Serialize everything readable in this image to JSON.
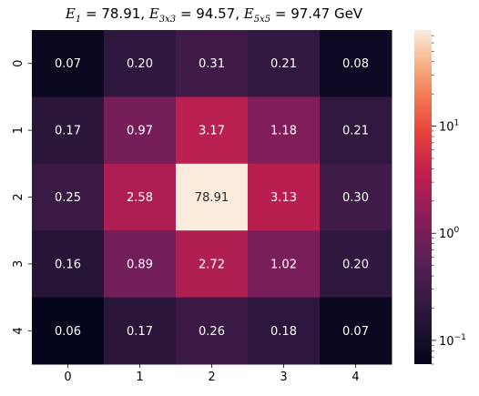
{
  "title": {
    "e1_label": "E",
    "e1_sub": "1",
    "e1_value": "78.91",
    "e3_label": "E",
    "e3_sub": "3x3",
    "e3_value": "94.57",
    "e5_label": "E",
    "e5_sub": "5x5",
    "e5_value": "97.47",
    "unit": "GeV"
  },
  "chart_data": {
    "type": "heatmap",
    "title": "E1 = 78.91, E3x3 = 94.57, E5x5 = 97.47 GeV",
    "x_categories": [
      "0",
      "1",
      "2",
      "3",
      "4"
    ],
    "y_categories": [
      "0",
      "1",
      "2",
      "3",
      "4"
    ],
    "values": [
      [
        0.07,
        0.2,
        0.31,
        0.21,
        0.08
      ],
      [
        0.17,
        0.97,
        3.17,
        1.18,
        0.21
      ],
      [
        0.25,
        2.58,
        78.91,
        3.13,
        0.3
      ],
      [
        0.16,
        0.89,
        2.72,
        1.02,
        0.2
      ],
      [
        0.06,
        0.17,
        0.26,
        0.18,
        0.07
      ]
    ],
    "value_labels": [
      [
        "0.07",
        "0.20",
        "0.31",
        "0.21",
        "0.08"
      ],
      [
        "0.17",
        "0.97",
        "3.17",
        "1.18",
        "0.21"
      ],
      [
        "0.25",
        "2.58",
        "78.91",
        "3.13",
        "0.30"
      ],
      [
        "0.16",
        "0.89",
        "2.72",
        "1.02",
        "0.20"
      ],
      [
        "0.06",
        "0.17",
        "0.26",
        "0.18",
        "0.07"
      ]
    ],
    "colorbar": {
      "scale": "log",
      "range": [
        0.06,
        78.91
      ],
      "ticks": [
        {
          "value": 0.1,
          "base": "10",
          "exp": "−1"
        },
        {
          "value": 1,
          "base": "10",
          "exp": "0"
        },
        {
          "value": 10,
          "base": "10",
          "exp": "1"
        }
      ],
      "colormap": "rocket"
    },
    "xlabel": "",
    "ylabel": "",
    "grid": false
  }
}
